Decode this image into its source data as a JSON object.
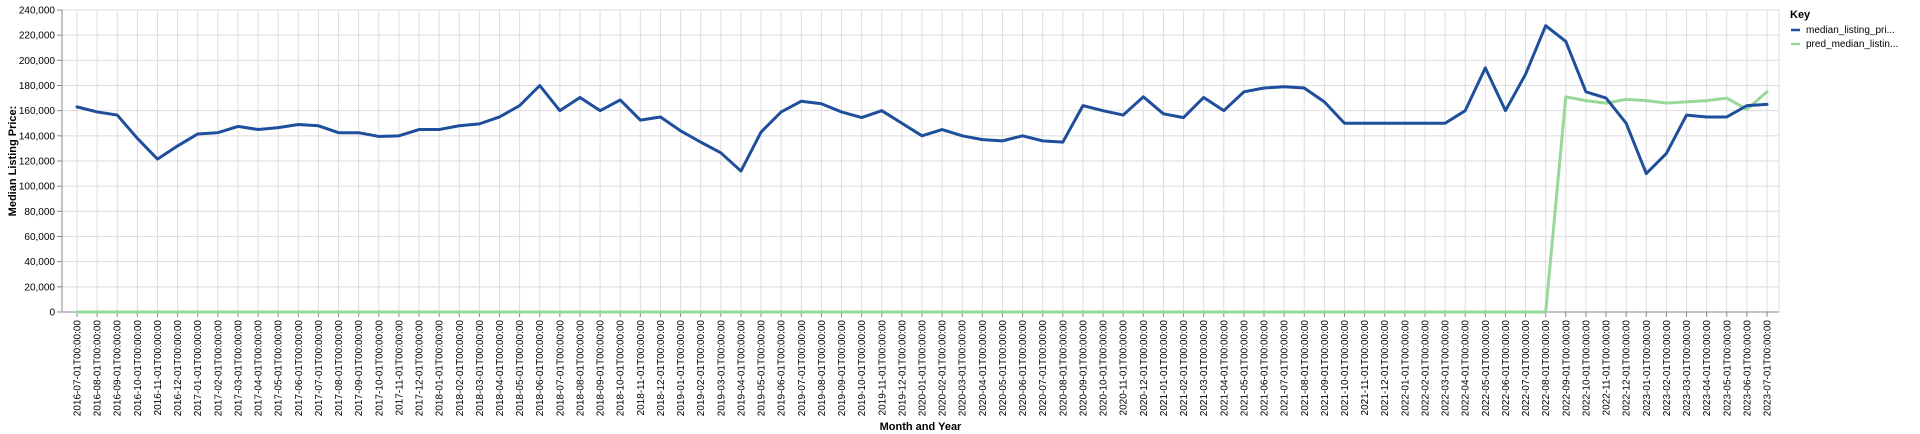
{
  "chart_data": {
    "type": "line",
    "xlabel": "Month and Year",
    "ylabel": "Median Listing Price:",
    "ylim": [
      0,
      240000
    ],
    "yticks": [
      "0",
      "20,000",
      "40,000",
      "60,000",
      "80,000",
      "100,000",
      "120,000",
      "140,000",
      "160,000",
      "180,000",
      "200,000",
      "220,000",
      "240,000"
    ],
    "grid": true,
    "legend": {
      "title": "Key",
      "placement": "top-right"
    },
    "x": [
      "2016-07-01T00:00:00",
      "2016-08-01T00:00:00",
      "2016-09-01T00:00:00",
      "2016-10-01T00:00:00",
      "2016-11-01T00:00:00",
      "2016-12-01T00:00:00",
      "2017-01-01T00:00:00",
      "2017-02-01T00:00:00",
      "2017-03-01T00:00:00",
      "2017-04-01T00:00:00",
      "2017-05-01T00:00:00",
      "2017-06-01T00:00:00",
      "2017-07-01T00:00:00",
      "2017-08-01T00:00:00",
      "2017-09-01T00:00:00",
      "2017-10-01T00:00:00",
      "2017-11-01T00:00:00",
      "2017-12-01T00:00:00",
      "2018-01-01T00:00:00",
      "2018-02-01T00:00:00",
      "2018-03-01T00:00:00",
      "2018-04-01T00:00:00",
      "2018-05-01T00:00:00",
      "2018-06-01T00:00:00",
      "2018-07-01T00:00:00",
      "2018-08-01T00:00:00",
      "2018-09-01T00:00:00",
      "2018-10-01T00:00:00",
      "2018-11-01T00:00:00",
      "2018-12-01T00:00:00",
      "2019-01-01T00:00:00",
      "2019-02-01T00:00:00",
      "2019-03-01T00:00:00",
      "2019-04-01T00:00:00",
      "2019-05-01T00:00:00",
      "2019-06-01T00:00:00",
      "2019-07-01T00:00:00",
      "2019-08-01T00:00:00",
      "2019-09-01T00:00:00",
      "2019-10-01T00:00:00",
      "2019-11-01T00:00:00",
      "2019-12-01T00:00:00",
      "2020-01-01T00:00:00",
      "2020-02-01T00:00:00",
      "2020-03-01T00:00:00",
      "2020-04-01T00:00:00",
      "2020-05-01T00:00:00",
      "2020-06-01T00:00:00",
      "2020-07-01T00:00:00",
      "2020-08-01T00:00:00",
      "2020-09-01T00:00:00",
      "2020-10-01T00:00:00",
      "2020-11-01T00:00:00",
      "2020-12-01T00:00:00",
      "2021-01-01T00:00:00",
      "2021-02-01T00:00:00",
      "2021-03-01T00:00:00",
      "2021-04-01T00:00:00",
      "2021-05-01T00:00:00",
      "2021-06-01T00:00:00",
      "2021-07-01T00:00:00",
      "2021-08-01T00:00:00",
      "2021-09-01T00:00:00",
      "2021-10-01T00:00:00",
      "2021-11-01T00:00:00",
      "2021-12-01T00:00:00",
      "2022-01-01T00:00:00",
      "2022-02-01T00:00:00",
      "2022-03-01T00:00:00",
      "2022-04-01T00:00:00",
      "2022-05-01T00:00:00",
      "2022-06-01T00:00:00",
      "2022-07-01T00:00:00",
      "2022-08-01T00:00:00",
      "2022-09-01T00:00:00",
      "2022-10-01T00:00:00",
      "2022-11-01T00:00:00",
      "2022-12-01T00:00:00",
      "2023-01-01T00:00:00",
      "2023-02-01T00:00:00",
      "2023-03-01T00:00:00",
      "2023-04-01T00:00:00",
      "2023-05-01T00:00:00",
      "2023-06-01T00:00:00",
      "2023-07-01T00:00:00"
    ],
    "series": [
      {
        "name": "median_listing_pri...",
        "color": "#1f4e9c",
        "values": [
          163000,
          159000,
          156500,
          138000,
          121500,
          132000,
          141500,
          142500,
          147500,
          145000,
          146500,
          149000,
          148000,
          142500,
          142500,
          139500,
          140000,
          145000,
          145000,
          148000,
          149500,
          155000,
          164000,
          180000,
          160000,
          170500,
          160000,
          168500,
          152500,
          155000,
          144000,
          135000,
          126500,
          112000,
          143000,
          159000,
          167500,
          165500,
          159000,
          154500,
          160000,
          150000,
          140000,
          145000,
          140000,
          137000,
          136000,
          140000,
          136000,
          135000,
          164000,
          160000,
          156500,
          171000,
          157500,
          154500,
          170500,
          160000,
          175000,
          178000,
          179000,
          178000,
          167000,
          150000,
          150000,
          150000,
          150000,
          150000,
          150000,
          160000,
          194000,
          160000,
          189000,
          227500,
          215000,
          175000,
          170000,
          150000,
          110000,
          126000,
          156500,
          155000,
          155000,
          164000,
          165000
        ]
      },
      {
        "name": "pred_median_listin...",
        "color": "#98d99a",
        "values": [
          0,
          0,
          0,
          0,
          0,
          0,
          0,
          0,
          0,
          0,
          0,
          0,
          0,
          0,
          0,
          0,
          0,
          0,
          0,
          0,
          0,
          0,
          0,
          0,
          0,
          0,
          0,
          0,
          0,
          0,
          0,
          0,
          0,
          0,
          0,
          0,
          0,
          0,
          0,
          0,
          0,
          0,
          0,
          0,
          0,
          0,
          0,
          0,
          0,
          0,
          0,
          0,
          0,
          0,
          0,
          0,
          0,
          0,
          0,
          0,
          0,
          0,
          0,
          0,
          0,
          0,
          0,
          0,
          0,
          0,
          0,
          0,
          0,
          0,
          171000,
          168000,
          166000,
          169000,
          168000,
          166000,
          167000,
          168000,
          170000,
          161000,
          175000
        ]
      }
    ]
  }
}
